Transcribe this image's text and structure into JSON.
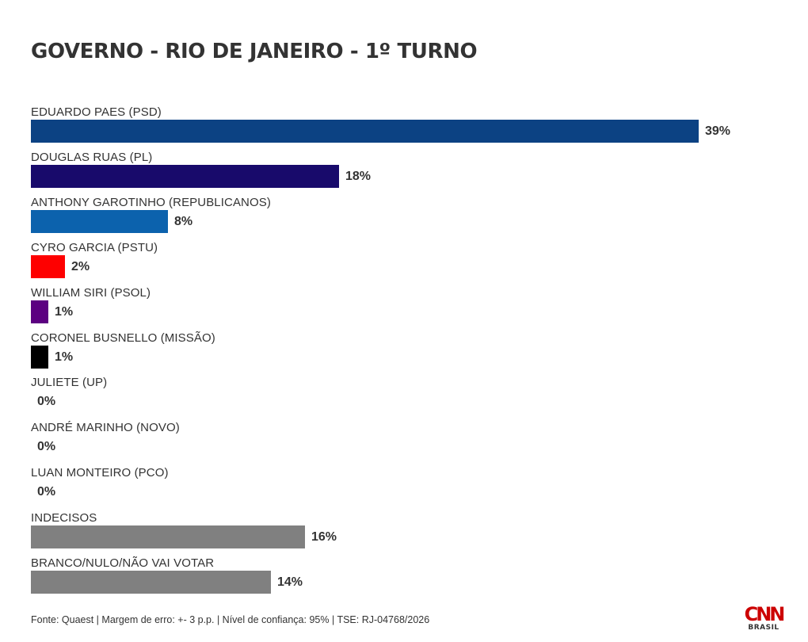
{
  "chart_data": {
    "type": "bar",
    "orientation": "horizontal",
    "title": "GOVERNO - RIO DE JANEIRO - 1º TURNO",
    "categories": [
      "EDUARDO PAES (PSD)",
      "DOUGLAS RUAS (PL)",
      "ANTHONY GAROTINHO (REPUBLICANOS)",
      "CYRO GARCIA (PSTU)",
      "WILLIAM SIRI (PSOL)",
      "CORONEL BUSNELLO (MISSÃO)",
      "JULIETE (UP)",
      "ANDRÉ MARINHO (NOVO)",
      "LUAN MONTEIRO (PCO)",
      "INDECISOS",
      "BRANCO/NULO/NÃO VAI VOTAR"
    ],
    "values": [
      39,
      18,
      8,
      2,
      1,
      1,
      0,
      0,
      0,
      16,
      14
    ],
    "value_labels": [
      "39%",
      "18%",
      "8%",
      "2%",
      "1%",
      "1%",
      "0%",
      "0%",
      "0%",
      "16%",
      "14%"
    ],
    "colors": [
      "#0c4283",
      "#180a6b",
      "#0c62ad",
      "#fe0000",
      "#5c0081",
      "#000000",
      "#808080",
      "#808080",
      "#808080",
      "#808080",
      "#808080"
    ],
    "xlim": [
      0,
      39
    ],
    "grid": false,
    "legend": "none",
    "footnote": "Fonte: Quaest | Margem de erro: +- 3 p.p. | Nível de confiança: 95% | TSE: RJ-04768/2026"
  },
  "brand": {
    "logo_text": "CNN",
    "logo_subtext": "BRASIL",
    "logo_color": "#cc0000"
  }
}
